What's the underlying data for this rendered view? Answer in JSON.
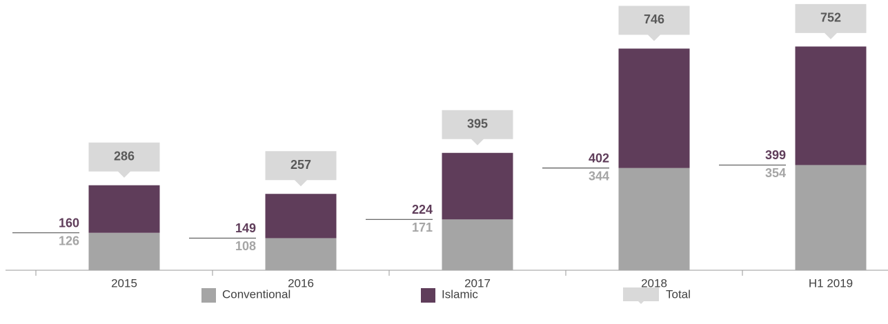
{
  "chart_data": {
    "type": "bar",
    "stacked": true,
    "categories": [
      "2015",
      "2016",
      "2017",
      "2018",
      "H1 2019"
    ],
    "series": [
      {
        "name": "Conventional",
        "color": "#a5a5a5",
        "values": [
          126,
          108,
          171,
          344,
          354
        ]
      },
      {
        "name": "Islamic",
        "color": "#5f3d5a",
        "values": [
          160,
          149,
          224,
          402,
          399
        ]
      }
    ],
    "totals": {
      "name": "Total",
      "color": "#d9d9d9",
      "values": [
        286,
        257,
        395,
        746,
        752
      ]
    }
  }
}
